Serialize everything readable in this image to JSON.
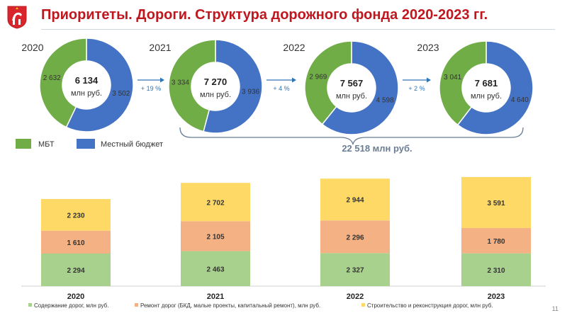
{
  "header": {
    "title": "Приоритеты. Дороги. Структура дорожного фонда 2020-2023 гг."
  },
  "colors": {
    "title": "#c0171f",
    "mbt": "#70ad47",
    "local": "#4472c4",
    "maintenance": "#a9d18e",
    "repair": "#f4b183",
    "construction": "#ffd966",
    "arrow": "#2e75b6"
  },
  "chart_data": [
    {
      "type": "pie",
      "donut": true,
      "legend": [
        "МБТ",
        "Местный бюджет"
      ],
      "unit": "млн руб.",
      "items": [
        {
          "year": "2020",
          "mbt": 2632,
          "local": 3502,
          "mbt_label": "2 632",
          "local_label": "3 502",
          "total_label": "6 134"
        },
        {
          "year": "2021",
          "mbt": 3334,
          "local": 3936,
          "mbt_label": "3 334",
          "local_label": "3 936",
          "total_label": "7 270"
        },
        {
          "year": "2022",
          "mbt": 2969,
          "local": 4598,
          "mbt_label": "2 969",
          "local_label": "4 598",
          "total_label": "7 567"
        },
        {
          "year": "2023",
          "mbt": 3041,
          "local": 4640,
          "mbt_label": "3 041",
          "local_label": "4 640",
          "total_label": "7 681"
        }
      ],
      "growth": [
        "+ 19 %",
        "+ 4 %",
        "+ 2 %"
      ],
      "brace_label": "22 518 млн руб."
    },
    {
      "type": "bar",
      "stacked": true,
      "categories": [
        "2020",
        "2021",
        "2022",
        "2023"
      ],
      "series": [
        {
          "name": "Содержание дорог, млн руб.",
          "values": [
            2294,
            2463,
            2327,
            2310
          ],
          "labels": [
            "2 294",
            "2 463",
            "2 327",
            "2 310"
          ]
        },
        {
          "name": "Ремонт дорог (БКД, малые проекты, капитальный ремонт), млн руб.",
          "values": [
            1610,
            2105,
            2296,
            1780
          ],
          "labels": [
            "1 610",
            "2 105",
            "2 296",
            "1 780"
          ]
        },
        {
          "name": "Строительство и реконструкция дорог, млн руб.",
          "values": [
            2230,
            2702,
            2944,
            3591
          ],
          "labels": [
            "2 230",
            "2 702",
            "2 944",
            "3 591"
          ]
        }
      ]
    }
  ],
  "footer": {
    "page_number": "11"
  }
}
